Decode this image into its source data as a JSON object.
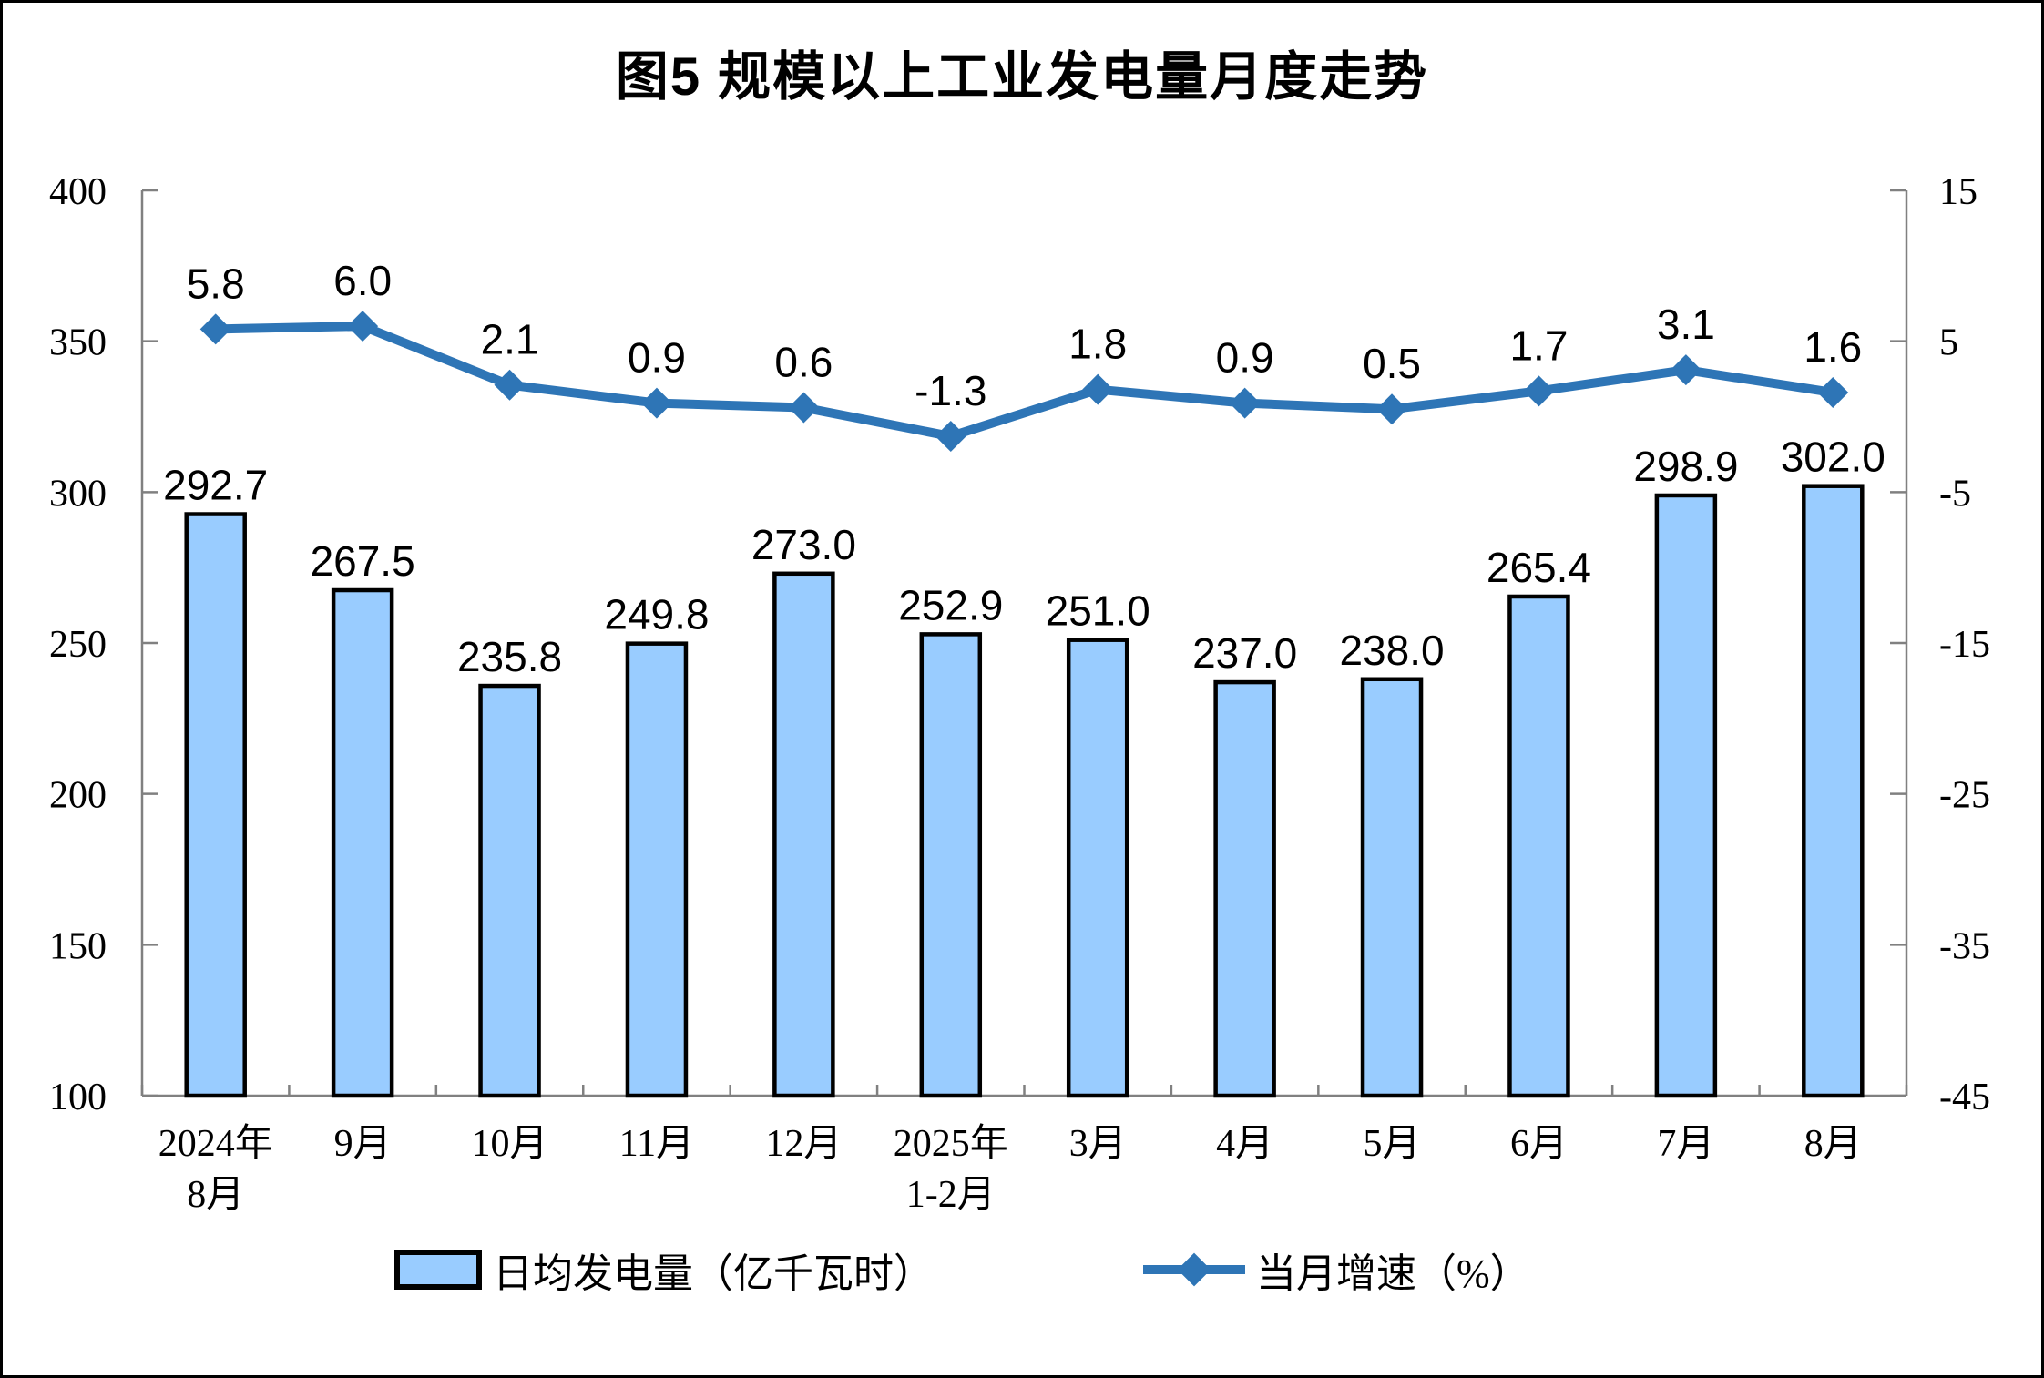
{
  "page": {
    "background": "#FFFFFF",
    "frame_border_color": "#000000"
  },
  "chart_data": {
    "type": "bar+line",
    "title": "图5 规模以上工业发电量月度走势",
    "categories": [
      "2024年\n8月",
      "9月",
      "10月",
      "11月",
      "12月",
      "2025年\n1-2月",
      "3月",
      "4月",
      "5月",
      "6月",
      "7月",
      "8月"
    ],
    "series": [
      {
        "name": "日均发电量（亿千瓦时）",
        "chart_type": "bar",
        "axis": "left",
        "color": "#99CCFF",
        "border_color": "#000000",
        "values": [
          292.7,
          267.5,
          235.8,
          249.8,
          273.0,
          252.9,
          251.0,
          237.0,
          238.0,
          265.4,
          298.9,
          302.0
        ]
      },
      {
        "name": "当月增速（%）",
        "chart_type": "line",
        "axis": "right",
        "color": "#2E75B6",
        "marker": "diamond",
        "values": [
          5.8,
          6.0,
          2.1,
          0.9,
          0.6,
          -1.3,
          1.8,
          0.9,
          0.5,
          1.7,
          3.1,
          1.6
        ]
      }
    ],
    "left_axis": {
      "min": 100,
      "max": 400,
      "step": 50,
      "tick_labels": [
        "400",
        "350",
        "300",
        "250",
        "200",
        "150",
        "100"
      ]
    },
    "right_axis": {
      "min": -45,
      "max": 15,
      "step": 10,
      "tick_labels": [
        "15",
        "5",
        "-5",
        "-15",
        "-25",
        "-35",
        "-45"
      ]
    },
    "value_label_decimals": 1,
    "grid": false,
    "axis_color": "#808080",
    "text_color": "#000000",
    "legend_position": "bottom"
  },
  "legend": {
    "items": [
      {
        "label": "日均发电量（亿千瓦时）",
        "swatch": "bar"
      },
      {
        "label": "当月增速（%）",
        "swatch": "line-diamond"
      }
    ]
  }
}
